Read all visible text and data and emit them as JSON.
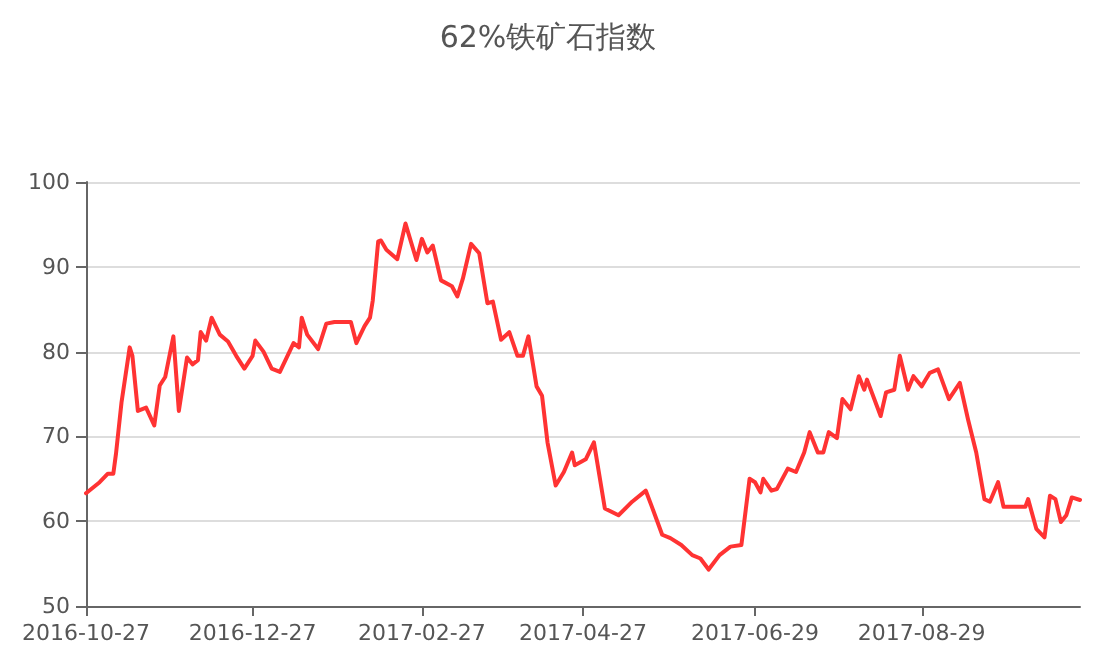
{
  "chart_data": {
    "type": "line",
    "title": "62%铁矿石指数",
    "x": [
      "2016-10-27",
      "2016-11-01",
      "2016-11-04",
      "2016-11-06",
      "2016-11-07",
      "2016-11-09",
      "2016-11-12",
      "2016-11-13",
      "2016-11-15",
      "2016-11-18",
      "2016-11-21",
      "2016-11-23",
      "2016-11-25",
      "2016-11-28",
      "2016-11-30",
      "2016-12-03",
      "2016-12-05",
      "2016-12-07",
      "2016-12-08",
      "2016-12-10",
      "2016-12-12",
      "2016-12-15",
      "2016-12-18",
      "2016-12-21",
      "2016-12-24",
      "2016-12-27",
      "2016-12-28",
      "2016-12-31",
      "2017-01-03",
      "2017-01-06",
      "2017-01-11",
      "2017-01-13",
      "2017-01-14",
      "2017-01-16",
      "2017-01-20",
      "2017-01-23",
      "2017-01-26",
      "2017-02-01",
      "2017-02-03",
      "2017-02-06",
      "2017-02-08",
      "2017-02-09",
      "2017-02-11",
      "2017-02-12",
      "2017-02-14",
      "2017-02-18",
      "2017-02-21",
      "2017-02-25",
      "2017-02-27",
      "2017-03-01",
      "2017-03-03",
      "2017-03-06",
      "2017-03-10",
      "2017-03-12",
      "2017-03-14",
      "2017-03-17",
      "2017-03-20",
      "2017-03-23",
      "2017-03-25",
      "2017-03-28",
      "2017-03-31",
      "2017-04-03",
      "2017-04-05",
      "2017-04-07",
      "2017-04-10",
      "2017-04-12",
      "2017-04-14",
      "2017-04-17",
      "2017-04-20",
      "2017-04-23",
      "2017-04-24",
      "2017-04-28",
      "2017-05-01",
      "2017-05-05",
      "2017-05-10",
      "2017-05-15",
      "2017-05-20",
      "2017-05-22",
      "2017-05-26",
      "2017-05-29",
      "2017-06-02",
      "2017-06-06",
      "2017-06-09",
      "2017-06-12",
      "2017-06-16",
      "2017-06-20",
      "2017-06-24",
      "2017-06-27",
      "2017-06-29",
      "2017-07-01",
      "2017-07-02",
      "2017-07-05",
      "2017-07-07",
      "2017-07-11",
      "2017-07-14",
      "2017-07-17",
      "2017-07-19",
      "2017-07-22",
      "2017-07-24",
      "2017-07-26",
      "2017-07-29",
      "2017-07-31",
      "2017-08-03",
      "2017-08-06",
      "2017-08-08",
      "2017-08-09",
      "2017-08-14",
      "2017-08-16",
      "2017-08-19",
      "2017-08-21",
      "2017-08-24",
      "2017-08-26",
      "2017-08-29",
      "2017-09-01",
      "2017-09-04",
      "2017-09-08",
      "2017-09-12",
      "2017-09-15",
      "2017-09-18",
      "2017-09-21",
      "2017-09-23",
      "2017-09-26",
      "2017-09-28",
      "2017-10-06",
      "2017-10-07",
      "2017-10-10",
      "2017-10-13",
      "2017-10-15",
      "2017-10-17",
      "2017-10-19",
      "2017-10-21",
      "2017-10-23",
      "2017-10-26"
    ],
    "series": [
      {
        "color": "#ff3333",
        "values": [
          63.3,
          64.6,
          65.6,
          65.6,
          68,
          74,
          80.5,
          79.5,
          73,
          73.4,
          71.3,
          76,
          77,
          81.8,
          73,
          79.3,
          78.5,
          79,
          82.3,
          81.3,
          84,
          82,
          81.2,
          79.5,
          78,
          79.5,
          81.3,
          80,
          78,
          77.6,
          81,
          80.5,
          84,
          82,
          80.3,
          83.3,
          83.5,
          83.5,
          81,
          83,
          84,
          86,
          93,
          93.1,
          92,
          90.9,
          95.1,
          90.8,
          93.3,
          91.7,
          92.5,
          88.4,
          87.7,
          86.5,
          88.6,
          92.7,
          91.6,
          85.7,
          85.9,
          81.4,
          82.3,
          79.5,
          79.5,
          81.8,
          75.9,
          74.8,
          69.3,
          64.2,
          65.8,
          68.1,
          66.6,
          67.3,
          69.3,
          61.5,
          60.7,
          62.3,
          63.6,
          61.9,
          58.4,
          58,
          57.2,
          56,
          55.6,
          54.3,
          56,
          57,
          57.2,
          65,
          64.6,
          63.4,
          65,
          63.6,
          63.8,
          66.2,
          65.8,
          68.1,
          70.5,
          68.1,
          68.1,
          70.5,
          69.8,
          74.4,
          73.2,
          77.1,
          75.5,
          76.7,
          72.4,
          75.2,
          75.5,
          79.5,
          75.5,
          77.1,
          75.9,
          77.5,
          77.9,
          74.4,
          76.3,
          72,
          68.1,
          62.6,
          62.3,
          64.6,
          61.7,
          61.7,
          62.6,
          59.1,
          58.1,
          63,
          62.6,
          59.9,
          60.7,
          62.8,
          62.5
        ]
      }
    ],
    "xlim": [
      "2016-10-27",
      "2017-10-26"
    ],
    "xticks": [
      "2016-10-27",
      "2016-12-27",
      "2017-02-27",
      "2017-04-27",
      "2017-06-29",
      "2017-08-29"
    ],
    "ylim": [
      50,
      100
    ],
    "yticks": [
      50,
      60,
      70,
      80,
      90,
      100
    ],
    "grid": "y",
    "line_style": "solid"
  }
}
